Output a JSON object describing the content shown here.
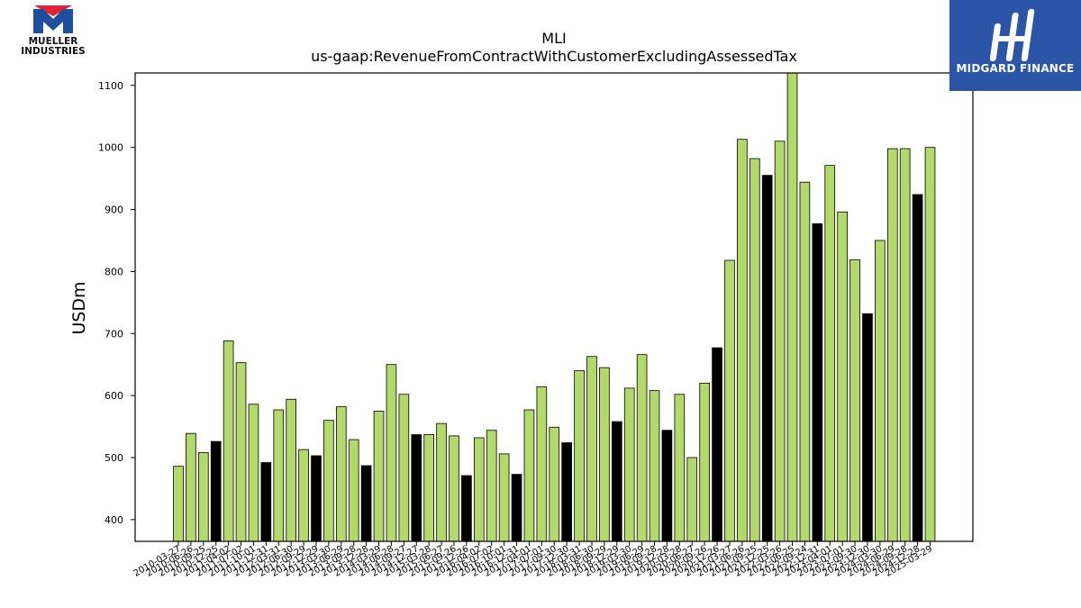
{
  "logos": {
    "left": {
      "line1": "MUELLER",
      "line2": "INDUSTRIES",
      "icon": "mueller-logo-icon"
    },
    "right": {
      "text": "MIDGARD FINANCE",
      "icon": "midgard-logo-icon"
    }
  },
  "colors": {
    "bar_green": "#b3d96b",
    "bar_black": "#000000",
    "brand_blue": "#2b56a8",
    "mueller_red": "#e0223a",
    "mueller_blue": "#1d4f9c"
  },
  "chart_data": {
    "type": "bar",
    "title": "MLI",
    "subtitle": "us-gaap:RevenueFromContractWithCustomerExcludingAssessedTax",
    "ylabel": "USDm",
    "xlabel": "",
    "ylim": [
      365,
      1120
    ],
    "yticks": [
      400,
      500,
      600,
      700,
      800,
      900,
      1000,
      1100
    ],
    "grid": false,
    "x_tick_labels": [
      "2010-03-27",
      "2010-06-26",
      "2010-09-25",
      "2010-12-25",
      "2011-04-02",
      "2011-07-02",
      "2011-10-01",
      "2011-12-31",
      "2012-03-31",
      "2012-06-30",
      "2012-09-29",
      "2012-12-29",
      "2013-03-30",
      "2013-06-29",
      "2013-09-28",
      "2013-12-28",
      "2014-03-29",
      "2014-06-28",
      "2014-09-27",
      "2014-12-27",
      "2015-03-28",
      "2015-06-27",
      "2015-09-26",
      "2015-12-26",
      "2016-04-02",
      "2016-07-02",
      "2016-10-01",
      "2016-12-31",
      "2017-04-01",
      "2017-07-01",
      "2017-09-30",
      "2017-12-30",
      "2018-03-31",
      "2018-06-30",
      "2018-09-29",
      "2018-12-29",
      "2019-03-30",
      "2019-06-29",
      "2019-09-28",
      "2019-12-28",
      "2020-03-28",
      "2020-06-27",
      "2020-09-26",
      "2020-12-26",
      "2021-03-27",
      "2021-06-26",
      "2021-09-25",
      "2021-12-25",
      "2022-03-26",
      "2022-06-25",
      "2022-09-24",
      "2022-12-31",
      "2023-04-01",
      "2023-07-01",
      "2023-09-30",
      "2023-12-30",
      "2024-03-30",
      "2024-06-29",
      "2024-09-28",
      "2024-12-28",
      "2025-03-29"
    ],
    "values": [
      486,
      539,
      508,
      526,
      688,
      653,
      586,
      492,
      577,
      594,
      513,
      503,
      560,
      582,
      529,
      487,
      575,
      650,
      602,
      537,
      537,
      555,
      535,
      471,
      532,
      544,
      506,
      473,
      577,
      614,
      549,
      524,
      640,
      663,
      645,
      558,
      612,
      666,
      608,
      544,
      602,
      500,
      620,
      677,
      818,
      1013,
      982,
      955,
      1010,
      1120,
      944,
      877,
      971,
      896,
      819,
      732,
      850,
      998,
      998,
      924,
      1000
    ],
    "highlight_black": [
      3,
      7,
      11,
      15,
      19,
      23,
      27,
      31,
      35,
      39,
      43,
      47,
      51,
      55,
      59
    ]
  }
}
